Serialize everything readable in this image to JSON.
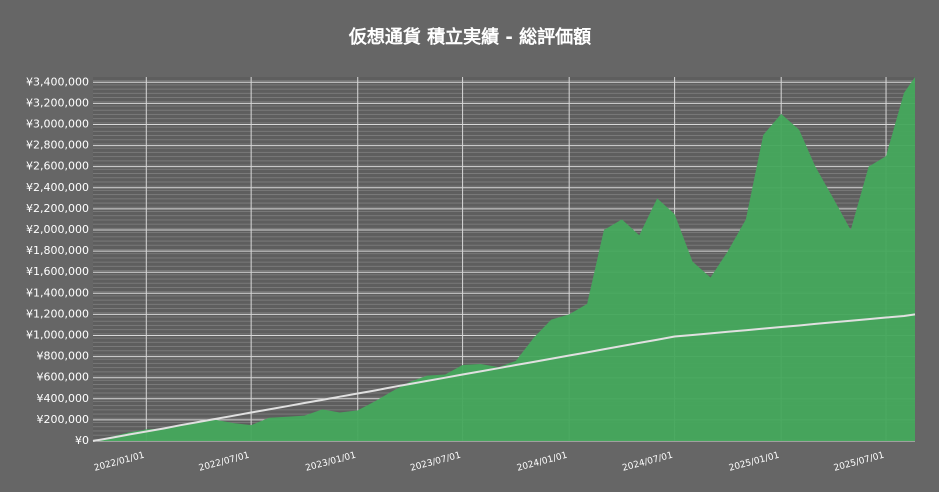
{
  "chart_data": {
    "type": "area",
    "title": "仮想通貨 積立実績 - 総評価額",
    "x": [
      "2021/10/01",
      "2021/11/01",
      "2021/12/01",
      "2022/01/01",
      "2022/02/01",
      "2022/03/01",
      "2022/04/01",
      "2022/05/01",
      "2022/06/01",
      "2022/07/01",
      "2022/08/01",
      "2022/09/01",
      "2022/10/01",
      "2022/11/01",
      "2022/12/01",
      "2023/01/01",
      "2023/02/01",
      "2023/03/01",
      "2023/04/01",
      "2023/05/01",
      "2023/06/01",
      "2023/07/01",
      "2023/08/01",
      "2023/09/01",
      "2023/10/01",
      "2023/11/01",
      "2023/12/01",
      "2024/01/01",
      "2024/02/01",
      "2024/03/01",
      "2024/04/01",
      "2024/05/01",
      "2024/06/01",
      "2024/07/01",
      "2024/08/01",
      "2024/09/01",
      "2024/10/01",
      "2024/11/01",
      "2024/12/01",
      "2025/01/01",
      "2025/02/01",
      "2025/03/01",
      "2025/04/01",
      "2025/05/01",
      "2025/06/01",
      "2025/07/01",
      "2025/08/01",
      "2025/08/20"
    ],
    "series": [
      {
        "color": "#45a85c",
        "kind": "area",
        "values": [
          0,
          40000,
          80000,
          110000,
          120000,
          150000,
          190000,
          200000,
          170000,
          150000,
          220000,
          230000,
          240000,
          300000,
          270000,
          290000,
          380000,
          470000,
          560000,
          620000,
          630000,
          720000,
          730000,
          700000,
          760000,
          980000,
          1150000,
          1200000,
          1300000,
          2000000,
          2100000,
          1950000,
          2300000,
          2150000,
          1700000,
          1550000,
          1800000,
          2100000,
          2900000,
          3100000,
          2950000,
          2600000,
          2300000,
          2000000,
          2600000,
          2700000,
          3300000,
          3450000
        ]
      },
      {
        "color": "#e0e0e0",
        "kind": "line",
        "values": [
          0,
          30000,
          60000,
          90000,
          120000,
          150000,
          180000,
          210000,
          240000,
          270000,
          300000,
          330000,
          360000,
          390000,
          420000,
          450000,
          480000,
          510000,
          540000,
          570000,
          600000,
          630000,
          660000,
          690000,
          720000,
          750000,
          780000,
          810000,
          840000,
          870000,
          900000,
          930000,
          960000,
          990000,
          1005000,
          1020000,
          1035000,
          1050000,
          1065000,
          1080000,
          1095000,
          1110000,
          1125000,
          1140000,
          1155000,
          1170000,
          1185000,
          1200000
        ]
      }
    ],
    "xlim": [
      "2021/10/01",
      "2025/08/20"
    ],
    "xticks": [
      "2022/01/01",
      "2022/07/01",
      "2023/01/01",
      "2023/07/01",
      "2024/01/01",
      "2024/07/01",
      "2025/01/01",
      "2025/07/01"
    ],
    "ylim": [
      0,
      3450000
    ],
    "yticks": [
      {
        "value": 0,
        "label": "¥0"
      },
      {
        "value": 200000,
        "label": "¥200,000"
      },
      {
        "value": 400000,
        "label": "¥400,000"
      },
      {
        "value": 600000,
        "label": "¥600,000"
      },
      {
        "value": 800000,
        "label": "¥800,000"
      },
      {
        "value": 1000000,
        "label": "¥1,000,000"
      },
      {
        "value": 1200000,
        "label": "¥1,200,000"
      },
      {
        "value": 1400000,
        "label": "¥1,400,000"
      },
      {
        "value": 1600000,
        "label": "¥1,600,000"
      },
      {
        "value": 1800000,
        "label": "¥1,800,000"
      },
      {
        "value": 2000000,
        "label": "¥2,000,000"
      },
      {
        "value": 2200000,
        "label": "¥2,200,000"
      },
      {
        "value": 2400000,
        "label": "¥2,400,000"
      },
      {
        "value": 2600000,
        "label": "¥2,600,000"
      },
      {
        "value": 2800000,
        "label": "¥2,800,000"
      },
      {
        "value": 3000000,
        "label": "¥3,000,000"
      },
      {
        "value": 3200000,
        "label": "¥3,200,000"
      },
      {
        "value": 3400000,
        "label": "¥3,400,000"
      }
    ],
    "grid": true
  }
}
